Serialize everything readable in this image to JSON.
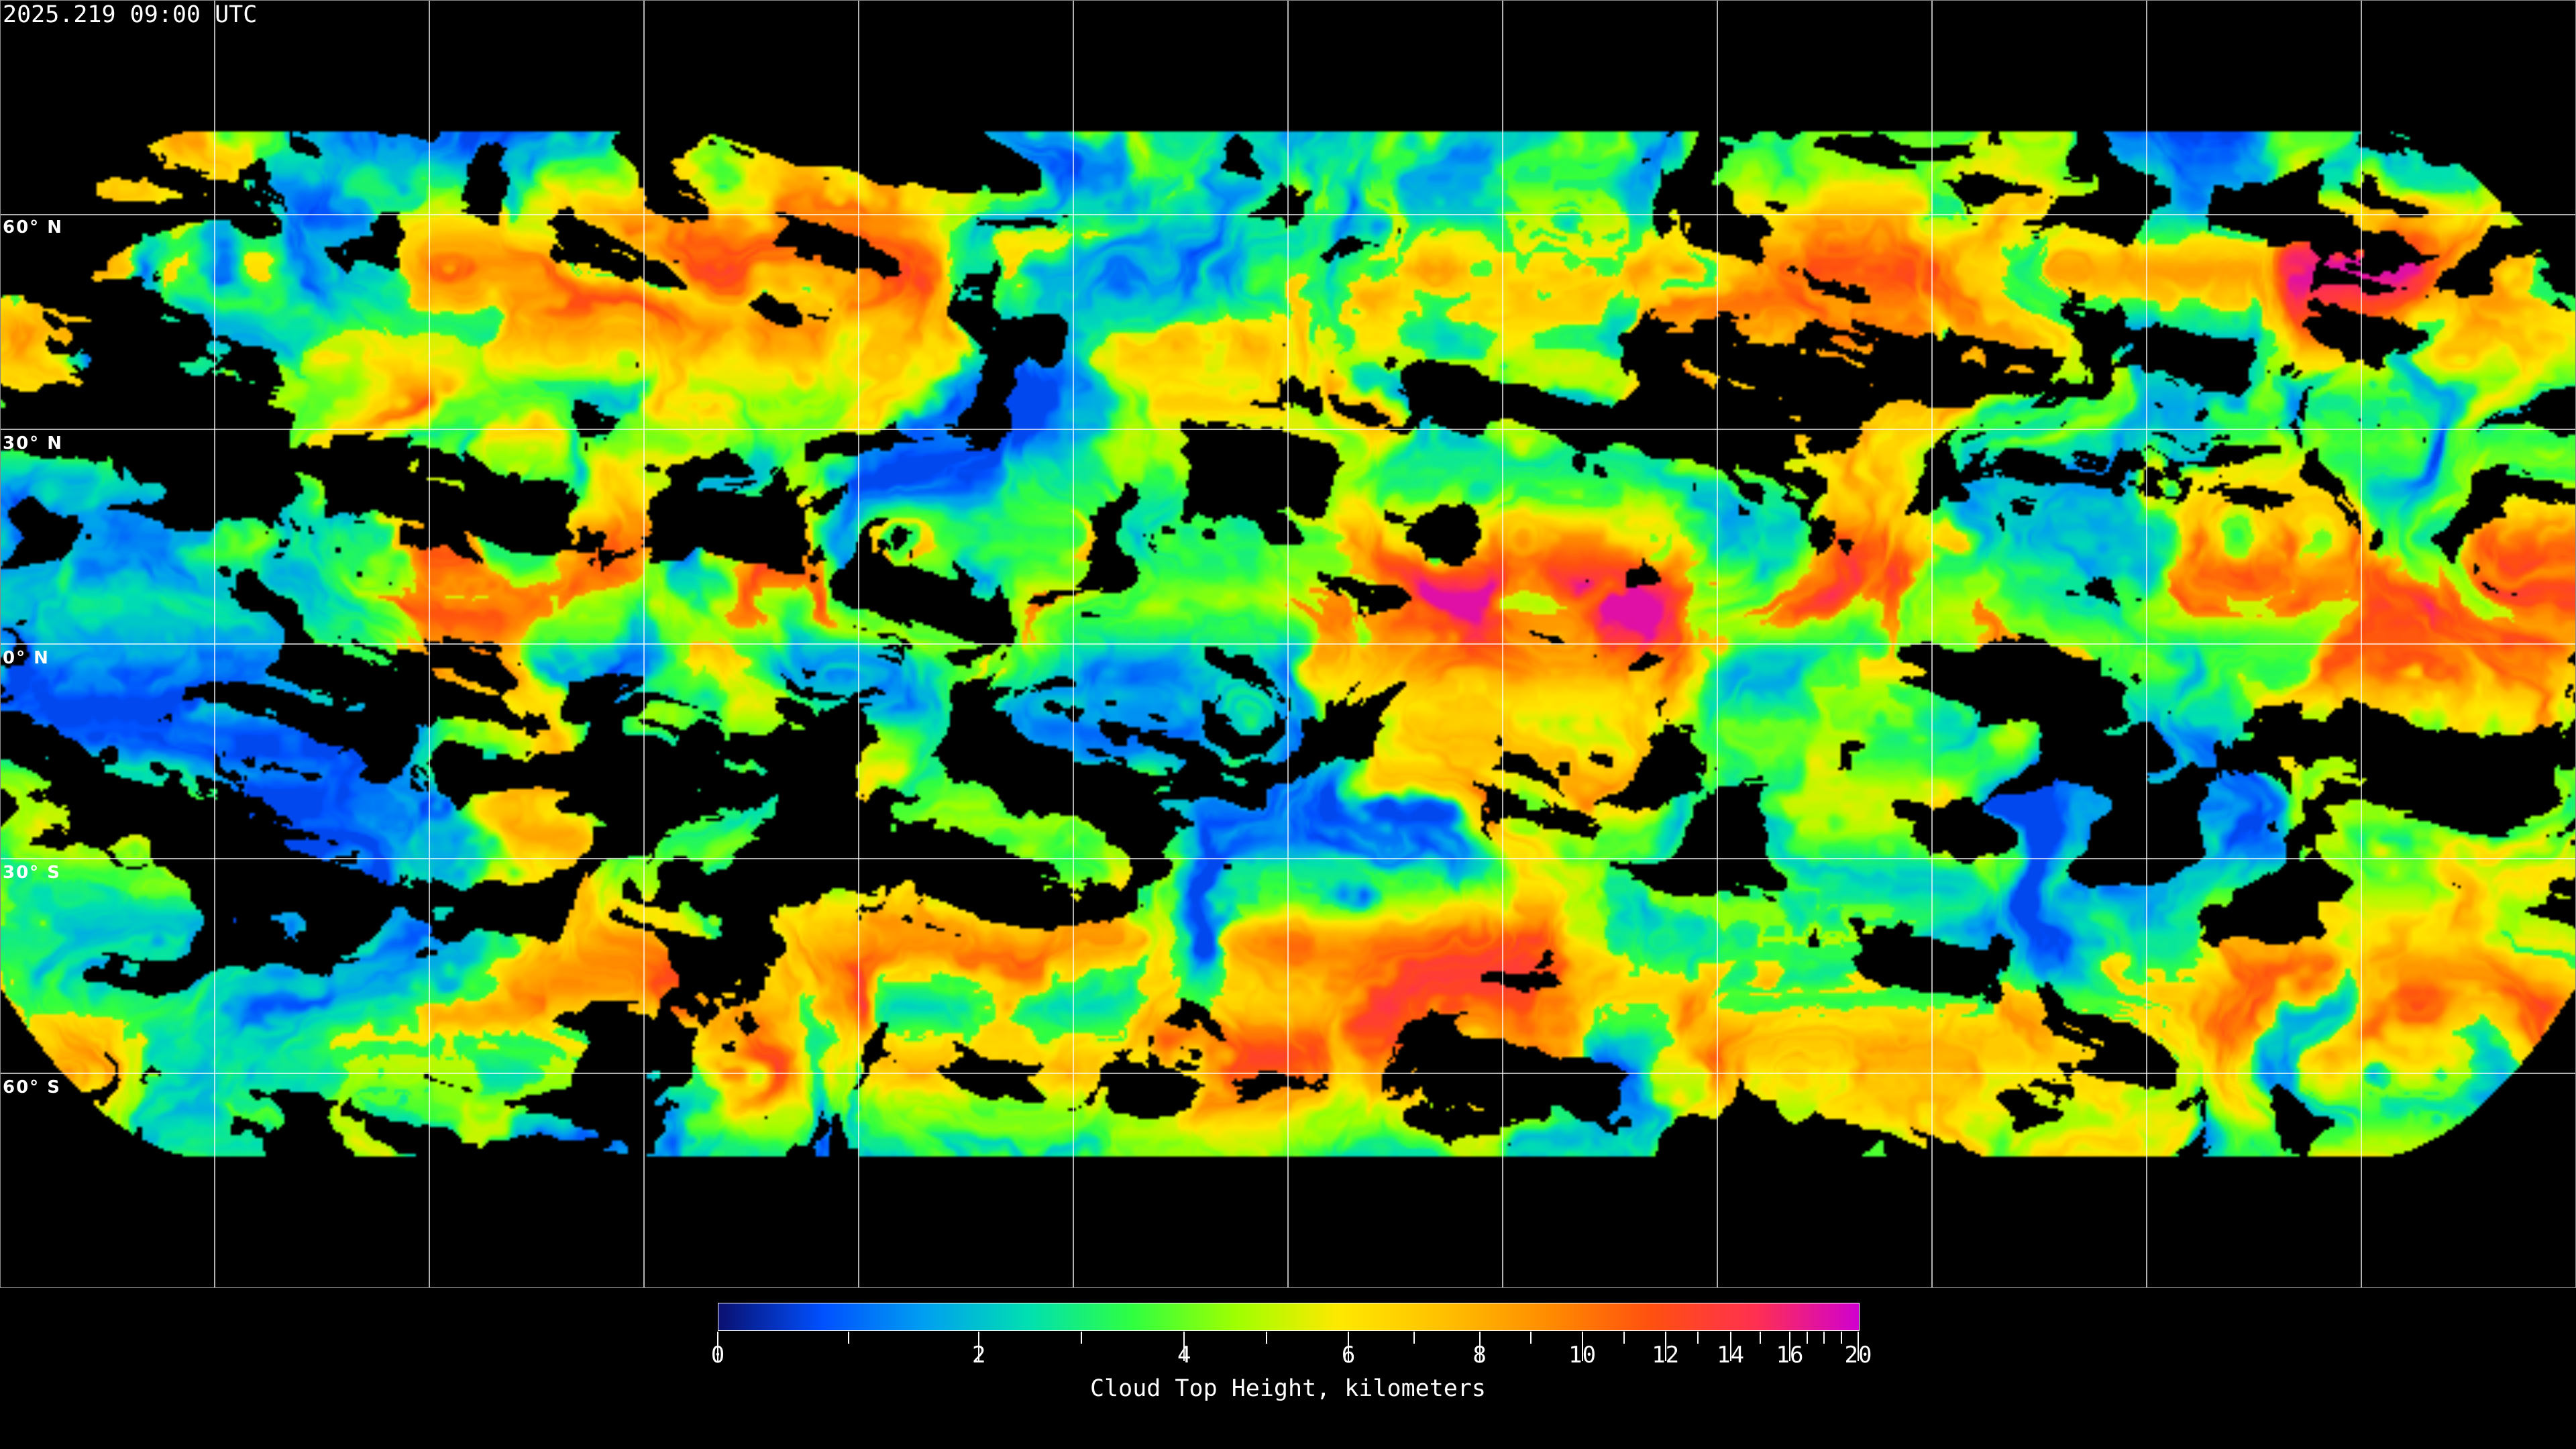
{
  "timestamp": "2025.219 09:00 UTC",
  "map": {
    "projection": "equirectangular",
    "latitude_labels": [
      "60° N",
      "30° N",
      "0° N",
      "30° S",
      "60° S"
    ],
    "gridline_color": "#ffffff",
    "no_data_color": "#000000"
  },
  "colorbar": {
    "title": "Cloud Top Height, kilometers",
    "min": 0,
    "max": 20,
    "major_ticks": [
      "0",
      "2",
      "4",
      "6",
      "8",
      "10",
      "12",
      "14",
      "16",
      "20"
    ],
    "minor_ticks": [
      1,
      3,
      5,
      7,
      9,
      11,
      13,
      15,
      17,
      18,
      19
    ],
    "colors": [
      "#0a1070",
      "#0050ff",
      "#00a0f0",
      "#00e0b0",
      "#30ff40",
      "#a0ff00",
      "#ffe800",
      "#ffc000",
      "#ff8c00",
      "#ff5010",
      "#ff3050",
      "#d000d0"
    ]
  }
}
